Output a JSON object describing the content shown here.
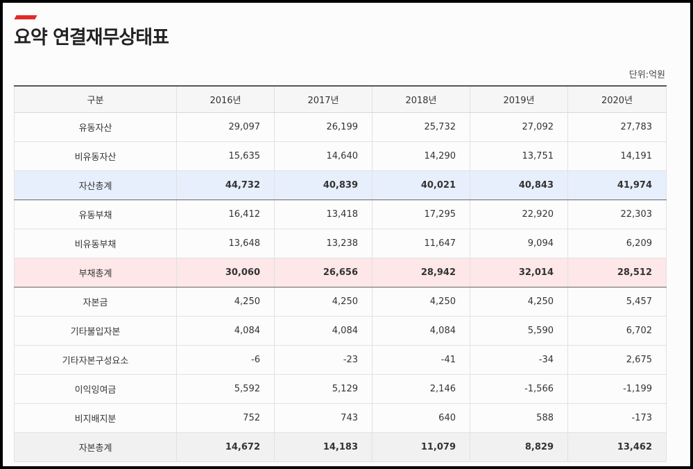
{
  "page": {
    "title": "요약 연결재무상태표",
    "unit_label": "단위:억원"
  },
  "table": {
    "headers": [
      "구분",
      "2016년",
      "2017년",
      "2018년",
      "2019년",
      "2020년"
    ],
    "rows": [
      {
        "label": "유동자산",
        "values": [
          "29,097",
          "26,199",
          "25,732",
          "27,092",
          "27,783"
        ]
      },
      {
        "label": "비유동자산",
        "values": [
          "15,635",
          "14,640",
          "14,290",
          "13,751",
          "14,191"
        ]
      },
      {
        "label": "자산총계",
        "values": [
          "44,732",
          "40,839",
          "40,021",
          "40,843",
          "41,974"
        ]
      },
      {
        "label": "유동부채",
        "values": [
          "16,412",
          "13,418",
          "17,295",
          "22,920",
          "22,303"
        ]
      },
      {
        "label": "비유동부채",
        "values": [
          "13,648",
          "13,238",
          "11,647",
          "9,094",
          "6,209"
        ]
      },
      {
        "label": "부채총계",
        "values": [
          "30,060",
          "26,656",
          "28,942",
          "32,014",
          "28,512"
        ]
      },
      {
        "label": "자본금",
        "values": [
          "4,250",
          "4,250",
          "4,250",
          "4,250",
          "5,457"
        ]
      },
      {
        "label": "기타불입자본",
        "values": [
          "4,084",
          "4,084",
          "4,084",
          "5,590",
          "6,702"
        ]
      },
      {
        "label": "기타자본구성요소",
        "values": [
          "-6",
          "-23",
          "-41",
          "-34",
          "2,675"
        ]
      },
      {
        "label": "이익잉여금",
        "values": [
          "5,592",
          "5,129",
          "2,146",
          "-1,566",
          "-1,199"
        ]
      },
      {
        "label": "비지배지분",
        "values": [
          "752",
          "743",
          "640",
          "588",
          "-173"
        ]
      },
      {
        "label": "자본총계",
        "values": [
          "14,672",
          "14,183",
          "11,079",
          "8,829",
          "13,462"
        ]
      }
    ]
  },
  "colors": {
    "accent": "#e02b2b",
    "asset_total_bg": "#e8effc",
    "liability_total_bg": "#fde7e8",
    "equity_total_bg": "#f1f1f1"
  }
}
